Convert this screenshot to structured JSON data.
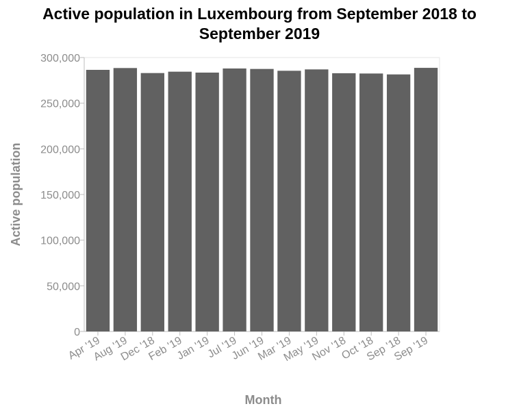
{
  "chart_data": {
    "type": "bar",
    "title": "Active population in Luxembourg from September 2018 to September 2019",
    "xlabel": "Month",
    "ylabel": "Active population",
    "categories": [
      "Apr '19",
      "Aug '19",
      "Dec '18",
      "Feb '19",
      "Jan '19",
      "Jul '19",
      "Jun '19",
      "Mar '19",
      "May '19",
      "Nov '18",
      "Oct '18",
      "Sep '18",
      "Sep '19"
    ],
    "values": [
      286500,
      288500,
      283000,
      284500,
      283500,
      288000,
      287500,
      285500,
      287000,
      282800,
      282500,
      281500,
      288700
    ],
    "ylim": [
      0,
      300000
    ],
    "yticks": [
      0,
      50000,
      100000,
      150000,
      200000,
      250000,
      300000
    ],
    "ytick_labels": [
      "0",
      "50,000",
      "100,000",
      "150,000",
      "200,000",
      "250,000",
      "300,000"
    ],
    "grid": false,
    "colors": {
      "bar": "#616161",
      "axis": "#bdbdbd",
      "text": "#8c8c8c"
    }
  }
}
